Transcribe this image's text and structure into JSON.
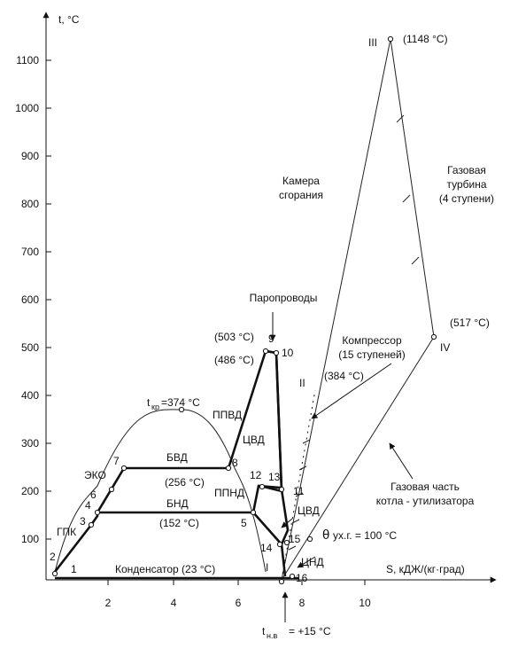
{
  "axes": {
    "y_label": "t, °C",
    "x_label": "S, кДЖ/(кг·град)",
    "y_ticks": [
      "100",
      "200",
      "300",
      "400",
      "500",
      "600",
      "700",
      "800",
      "900",
      "1000",
      "1100"
    ],
    "x_ticks": [
      "2",
      "4",
      "6",
      "8",
      "10"
    ]
  },
  "labels": {
    "kamera": [
      "Камера",
      "сгорания"
    ],
    "turbina": [
      "Газовая",
      "турбина",
      "(4 ступени)"
    ],
    "kompressor": [
      "Компрессор",
      "(15 ступеней)"
    ],
    "kotel": [
      "Газовая часть",
      "котла - утилизатора"
    ],
    "paroprovody": "Паропроводы",
    "t_kr_main": "t",
    "t_kr_sub": "кр",
    "t_kr_val": "=374 °C",
    "t_nv_main": "t",
    "t_nv_sub": "н.в",
    "t_nv_val": "= +15 °C",
    "theta_main": "θ",
    "theta_rest": "ух.г. = 100 °C",
    "temp_1148": "(1148 °C)",
    "temp_517": "(517 °C)",
    "temp_503": "(503 °C)",
    "temp_486": "(486 °C)",
    "temp_384": "(384 °C)",
    "temp_256": "(256 °C)",
    "temp_152": "(152 °C)",
    "kondensator": "Конденсатор (23 °C)",
    "ppvd": "ППВД",
    "cvd_upper": "ЦВД",
    "cvd_lower": "ЦВД",
    "ppnd": "ППНД",
    "cnd": "ЦНД",
    "bvd": "БВД",
    "bnd": "БНД",
    "eko": "ЭКО",
    "gpk": "ГПК",
    "roman": [
      "I",
      "II",
      "III",
      "IV"
    ],
    "points": [
      "1",
      "2",
      "3",
      "4",
      "5",
      "6",
      "7",
      "8",
      "9",
      "10",
      "11",
      "12",
      "13",
      "14",
      "15",
      "16"
    ]
  }
}
